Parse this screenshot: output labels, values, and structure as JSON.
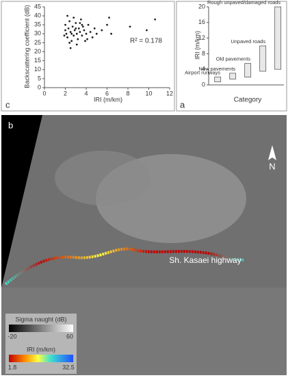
{
  "chart_data": [
    {
      "type": "scatter",
      "panel": "c",
      "x_label": "IRI (m/km)",
      "y_label": "Backscattering coefficient (dB)",
      "annotation": "R² = 0.178",
      "color": "#222222",
      "x": [
        2.0,
        2.1,
        2.2,
        2.3,
        2.4,
        2.5,
        2.6,
        2.7,
        2.8,
        2.9,
        3.0,
        3.1,
        3.2,
        3.3,
        3.4,
        3.5,
        3.6,
        3.7,
        3.8,
        3.9,
        4.0,
        4.2,
        4.4,
        4.6,
        4.8,
        2.2,
        2.5,
        2.8,
        3.1,
        3.4,
        2.0,
        2.6,
        3.0,
        3.6,
        4.1,
        5.0,
        5.5,
        6.0,
        6.2,
        6.4,
        8.2,
        9.8,
        10.6,
        1.9,
        2.4
      ],
      "y": [
        35,
        30,
        28,
        33,
        37,
        31,
        26,
        34,
        29,
        32,
        36,
        30,
        27,
        33,
        31,
        38,
        29,
        34,
        32,
        26,
        30,
        35,
        31,
        28,
        33,
        40,
        22,
        39,
        24,
        36,
        32,
        30,
        33,
        35,
        27,
        30,
        32,
        35,
        39,
        30,
        34,
        32,
        38,
        29,
        25
      ],
      "xlim": [
        0,
        12
      ],
      "xticks": [
        0,
        2,
        4,
        6,
        8,
        10,
        12
      ],
      "ylim": [
        0,
        45
      ],
      "yticks": [
        0,
        5,
        10,
        15,
        20,
        25,
        30,
        35,
        40,
        45
      ]
    },
    {
      "type": "range-bar",
      "panel": "a",
      "x_label": "Category",
      "y_label": "IRI (m/km)",
      "color": "#e8e8e8",
      "categories": [
        "Airport runways",
        "New pavements",
        "Old pavements",
        "Unpaved roads",
        "Rough unpaved/damaged roads"
      ],
      "low": [
        0.8,
        1.5,
        2,
        3.5,
        4
      ],
      "high": [
        2,
        3,
        5.5,
        10,
        20
      ],
      "ylim": [
        0,
        20
      ],
      "yticks": [
        0,
        4,
        8,
        12,
        16,
        20
      ]
    }
  ],
  "map": {
    "panel": "b",
    "road_label": "Sh. Kasaei highway",
    "north": "N",
    "legend": {
      "sigma_title": "Sigma naught (dB)",
      "sigma_min": "-20",
      "sigma_max": "60",
      "iri_title": "IRI (m/km)",
      "iri_min": "1.8",
      "iri_max": "32.5"
    }
  }
}
